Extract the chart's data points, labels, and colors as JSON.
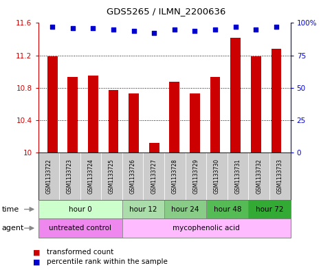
{
  "title": "GDS5265 / ILMN_2200636",
  "samples": [
    "GSM1133722",
    "GSM1133723",
    "GSM1133724",
    "GSM1133725",
    "GSM1133726",
    "GSM1133727",
    "GSM1133728",
    "GSM1133729",
    "GSM1133730",
    "GSM1133731",
    "GSM1133732",
    "GSM1133733"
  ],
  "bar_values": [
    11.19,
    10.93,
    10.95,
    10.77,
    10.73,
    10.12,
    10.87,
    10.73,
    10.93,
    11.42,
    11.19,
    11.28
  ],
  "percentile_values": [
    97,
    96,
    96,
    95,
    94,
    92,
    95,
    94,
    95,
    97,
    95,
    97
  ],
  "bar_color": "#cc0000",
  "dot_color": "#0000cc",
  "ylim_left": [
    10.0,
    11.6
  ],
  "ylim_right": [
    0,
    100
  ],
  "yticks_left": [
    10.0,
    10.4,
    10.8,
    11.2,
    11.6
  ],
  "yticks_right": [
    0,
    25,
    50,
    75,
    100
  ],
  "ytick_labels_left": [
    "10",
    "10.4",
    "10.8",
    "11.2",
    "11.6"
  ],
  "ytick_labels_right": [
    "0",
    "25",
    "50",
    "75",
    "100%"
  ],
  "time_groups": [
    {
      "label": "hour 0",
      "start": 0,
      "end": 3,
      "color": "#ccffcc"
    },
    {
      "label": "hour 12",
      "start": 4,
      "end": 5,
      "color": "#aaddaa"
    },
    {
      "label": "hour 24",
      "start": 6,
      "end": 7,
      "color": "#88cc88"
    },
    {
      "label": "hour 48",
      "start": 8,
      "end": 9,
      "color": "#55bb55"
    },
    {
      "label": "hour 72",
      "start": 10,
      "end": 11,
      "color": "#33aa33"
    }
  ],
  "agent_groups": [
    {
      "label": "untreated control",
      "start": 0,
      "end": 3,
      "color": "#ee88ee"
    },
    {
      "label": "mycophenolic acid",
      "start": 4,
      "end": 11,
      "color": "#ffbbff"
    }
  ],
  "label_time": "time",
  "label_agent": "agent",
  "background_color": "#ffffff",
  "xticklabel_bg": "#cccccc",
  "grid_yticks": [
    10.4,
    10.8,
    11.2
  ]
}
